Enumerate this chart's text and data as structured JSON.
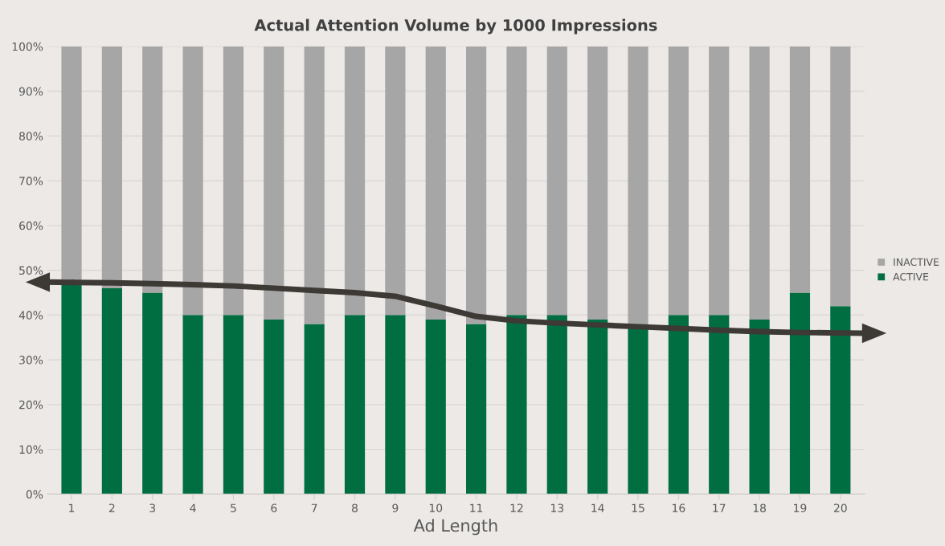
{
  "chart_data": {
    "type": "bar",
    "title": "Actual Attention Volume by 1000 Impressions",
    "xlabel": "Ad Length",
    "categories": [
      "1",
      "2",
      "3",
      "4",
      "5",
      "6",
      "7",
      "8",
      "9",
      "10",
      "11",
      "12",
      "13",
      "14",
      "15",
      "16",
      "17",
      "18",
      "19",
      "20"
    ],
    "stacked": true,
    "series": [
      {
        "name": "ACTIVE",
        "color": "#006e41",
        "values": [
          47,
          46,
          45,
          40,
          40,
          39,
          38,
          40,
          40,
          39,
          38,
          40,
          40,
          39,
          38,
          40,
          40,
          39,
          45,
          42
        ]
      },
      {
        "name": "INACTIVE",
        "color": "#a6a6a6",
        "values": [
          53,
          54,
          55,
          60,
          60,
          61,
          62,
          60,
          60,
          61,
          62,
          60,
          60,
          61,
          62,
          60,
          60,
          61,
          55,
          58
        ]
      },
      {
        "type": "line",
        "color": "#3d3935",
        "values": [
          47.3,
          47.2,
          47.0,
          46.8,
          46.5,
          46.0,
          45.5,
          45.0,
          44.2,
          42.0,
          39.7,
          38.7,
          38.2,
          37.8,
          37.4,
          37.0,
          36.6,
          36.3,
          36.1,
          36.0
        ]
      }
    ],
    "ylim": [
      0,
      100
    ],
    "yticks": [
      {
        "value": 0,
        "label": "0%"
      },
      {
        "value": 10,
        "label": "10%"
      },
      {
        "value": 20,
        "label": "20%"
      },
      {
        "value": 30,
        "label": "30%"
      },
      {
        "value": 40,
        "label": "40%"
      },
      {
        "value": 50,
        "label": "50%"
      },
      {
        "value": 60,
        "label": "60%"
      },
      {
        "value": 70,
        "label": "70%"
      },
      {
        "value": 80,
        "label": "80%"
      },
      {
        "value": 90,
        "label": "90%"
      },
      {
        "value": 100,
        "label": "100%"
      }
    ],
    "grid": "y",
    "legend": "right"
  }
}
